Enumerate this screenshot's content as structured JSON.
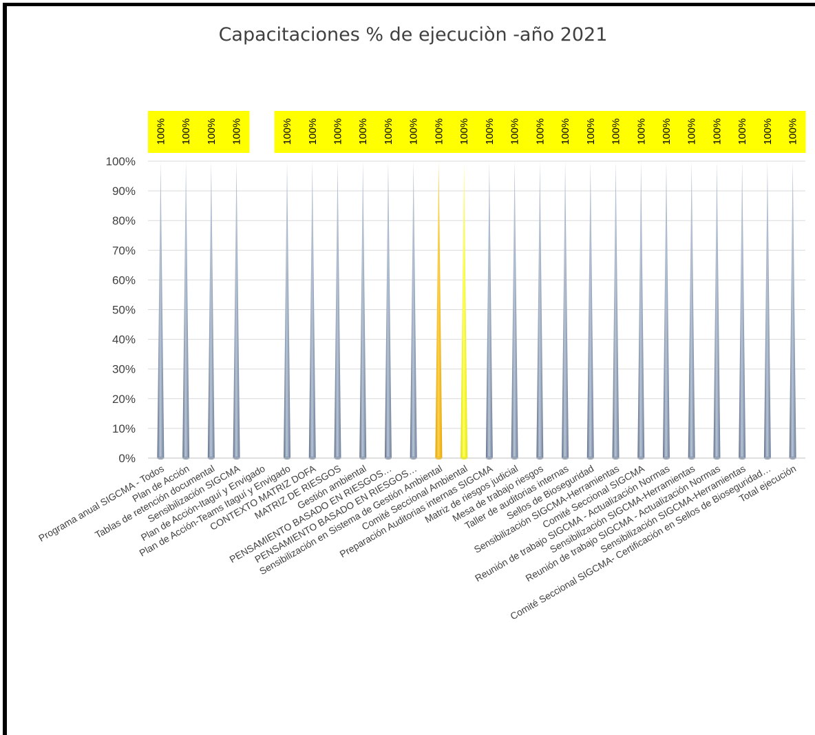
{
  "chart_data": {
    "type": "bar",
    "title": "Capacitaciones % de ejecuciòn -año 2021",
    "ylim": [
      0,
      1
    ],
    "yticks": [
      "0%",
      "10%",
      "20%",
      "30%",
      "40%",
      "50%",
      "60%",
      "70%",
      "80%",
      "90%",
      "100%"
    ],
    "grid": true,
    "legend": "none",
    "colors": {
      "bar": "#8496b0",
      "highlight_orange": "#ffc000",
      "highlight_yellow": "#ffff00",
      "data_label_background": "#ffff00",
      "grid": "#d9d9d9"
    },
    "categories": [
      "Programa anual SIGCMA - Todos",
      "Plan de Acción",
      "Tablas de retención documental",
      "Sensibilización SIGCMA",
      "Plan de Acción-Itaguí y Envigado",
      "Plan de Acción-Teams Itaguí y Envigado",
      "CONTEXTO MATRIZ DOFA",
      "MATRIZ DE RIESGOS",
      "Gestión ambiental",
      "PENSAMIENTO BASADO EN RIESGOS…",
      "PENSAMIENTO BASADO EN RIESGOS…",
      "Sensibilización en Sistema de Gestión Ambiental",
      "Comité Seccional Ambiental",
      "Preparación Auditorias internas SIGCMA",
      "Matriz de riesgos judicial",
      "Mesa de trabajo riesgos",
      "Taller de auditorias internas",
      "Sellos de Bioseguridad",
      "Sensibilización SIGCMA-Herramientas",
      "Comité Seccional SIGCMA",
      "Reunión de trabajo SIGCMA - Actualización Normas",
      "Sensibilización SIGCMA-Herramientas",
      "Reunión de trabajo SIGCMA - Actualización Normas",
      "Sensibilización SIGCMA-Herramientas",
      "Comité Seccional SIGCMA- Certificación en Sellos de Bioseguridad…",
      "Total ejecución"
    ],
    "values": [
      1,
      1,
      1,
      1,
      null,
      1,
      1,
      1,
      1,
      1,
      1,
      1,
      1,
      1,
      1,
      1,
      1,
      1,
      1,
      1,
      1,
      1,
      1,
      1,
      1,
      1
    ],
    "data_labels": [
      "100%",
      "100%",
      "100%",
      "100%",
      "",
      "100%",
      "100%",
      "100%",
      "100%",
      "100%",
      "100%",
      "100%",
      "100%",
      "100%",
      "100%",
      "100%",
      "100%",
      "100%",
      "100%",
      "100%",
      "100%",
      "100%",
      "100%",
      "100%",
      "100%",
      "100%"
    ],
    "bar_colors": [
      "bar",
      "bar",
      "bar",
      "bar",
      "bar",
      "bar",
      "bar",
      "bar",
      "bar",
      "bar",
      "bar",
      "highlight_orange",
      "highlight_yellow",
      "bar",
      "bar",
      "bar",
      "bar",
      "bar",
      "bar",
      "bar",
      "bar",
      "bar",
      "bar",
      "bar",
      "bar",
      "bar"
    ]
  }
}
